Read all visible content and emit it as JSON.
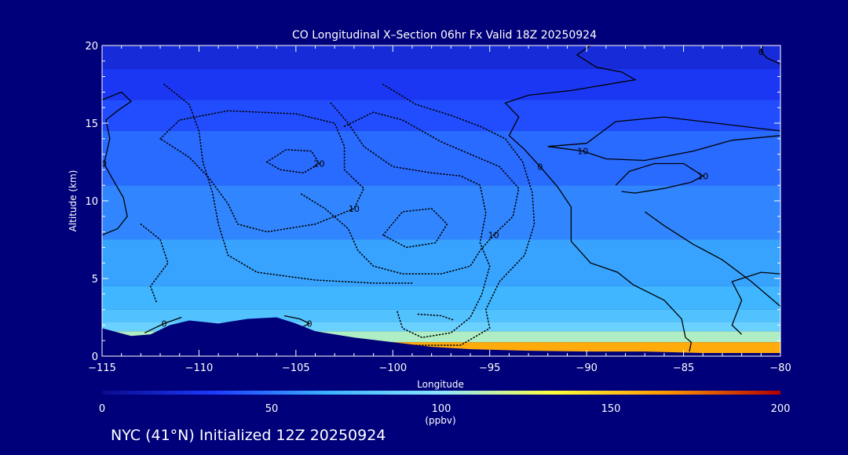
{
  "chart_data": {
    "type": "heatmap",
    "title": "CO Longitudinal X–Section 06hr  Fx Valid 18Z 20250924",
    "xlabel": "Longitude",
    "ylabel": "Altitude (km)",
    "xlim": [
      -115,
      -80
    ],
    "ylim": [
      0,
      20
    ],
    "x_ticks": [
      -115,
      -110,
      -105,
      -100,
      -95,
      -90,
      -85,
      -80
    ],
    "x_tick_labels": [
      "−115",
      "−110",
      "−105",
      "−100",
      "−95",
      "−90",
      "−85",
      "−80"
    ],
    "y_ticks": [
      0,
      5,
      10,
      15,
      20
    ],
    "y_tick_labels": [
      "0",
      "5",
      "10",
      "15",
      "20"
    ],
    "colorbar": {
      "min": 0,
      "max": 200,
      "ticks": [
        0,
        50,
        100,
        150,
        200
      ],
      "tick_labels": [
        "0",
        "50",
        "100",
        "150",
        "200"
      ],
      "unit_label": "(ppbv)",
      "colors": [
        "#0a0a8c",
        "#1e3cff",
        "#3cb4ff",
        "#8ce6ff",
        "#ffff3c",
        "#ff9600",
        "#b40000"
      ]
    },
    "layers": [
      {
        "z0": 18.5,
        "z1": 20,
        "value": 22
      },
      {
        "z0": 16.5,
        "z1": 18.5,
        "value": 30
      },
      {
        "z0": 14.5,
        "z1": 16.5,
        "value": 38
      },
      {
        "z0": 11,
        "z1": 14.5,
        "value": 46
      },
      {
        "z0": 7.5,
        "z1": 11,
        "value": 54
      },
      {
        "z0": 4.5,
        "z1": 7.5,
        "value": 62
      },
      {
        "z0": 3,
        "z1": 4.5,
        "value": 68
      },
      {
        "z0": 2.2,
        "z1": 3,
        "value": 76
      },
      {
        "z0": 1.6,
        "z1": 2.2,
        "value": 86
      },
      {
        "z0": 0.9,
        "z1": 1.6,
        "value": 110
      },
      {
        "z0": 0,
        "z1": 0.9,
        "value": 160
      }
    ],
    "terrain": [
      [
        -115,
        1.8
      ],
      [
        -113.5,
        1.3
      ],
      [
        -112.5,
        1.4
      ],
      [
        -111.5,
        2.0
      ],
      [
        -110.5,
        2.3
      ],
      [
        -109,
        2.1
      ],
      [
        -107.5,
        2.4
      ],
      [
        -106,
        2.5
      ],
      [
        -105,
        2.1
      ],
      [
        -104,
        1.6
      ],
      [
        -102,
        1.2
      ],
      [
        -100,
        0.9
      ],
      [
        -98,
        0.6
      ],
      [
        -96,
        0.45
      ],
      [
        -93,
        0.35
      ],
      [
        -90,
        0.3
      ],
      [
        -87,
        0.3
      ],
      [
        -84,
        0.2
      ],
      [
        -80,
        0.2
      ]
    ],
    "contours": [
      {
        "label": "0",
        "style": "solid",
        "points": [
          [
            -115,
            16.5
          ],
          [
            -114,
            17.0
          ],
          [
            -113.5,
            16.4
          ],
          [
            -114.2,
            15.8
          ],
          [
            -114.8,
            15.2
          ],
          [
            -114.6,
            14.0
          ],
          [
            -114.9,
            12.4
          ],
          [
            -114.5,
            11.5
          ],
          [
            -113.9,
            10.2
          ],
          [
            -113.7,
            9.0
          ],
          [
            -114.2,
            8.2
          ],
          [
            -115,
            7.8
          ]
        ]
      },
      {
        "label": "0",
        "style": "solid",
        "points": [
          [
            -112.8,
            1.5
          ],
          [
            -111.8,
            2.1
          ],
          [
            -110.9,
            2.5
          ]
        ]
      },
      {
        "label": "0",
        "style": "solid",
        "points": [
          [
            -105.6,
            2.6
          ],
          [
            -104.8,
            2.4
          ],
          [
            -104.3,
            2.1
          ],
          [
            -104.8,
            1.8
          ]
        ]
      },
      {
        "label": "0",
        "style": "solid",
        "points": [
          [
            -89.8,
            20
          ],
          [
            -90.5,
            19.4
          ],
          [
            -89.5,
            18.6
          ],
          [
            -88.2,
            18.3
          ],
          [
            -87.5,
            17.8
          ],
          [
            -90.8,
            17.1
          ],
          [
            -93.0,
            16.8
          ],
          [
            -94.2,
            16.3
          ],
          [
            -93.5,
            15.4
          ],
          [
            -94.0,
            14.2
          ],
          [
            -93.2,
            13.3
          ],
          [
            -92.4,
            12.2
          ],
          [
            -91.5,
            10.9
          ],
          [
            -90.8,
            9.6
          ],
          [
            -90.8,
            7.4
          ],
          [
            -89.8,
            6.0
          ],
          [
            -88.4,
            5.4
          ],
          [
            -87.6,
            4.6
          ],
          [
            -86.0,
            3.6
          ],
          [
            -85.1,
            2.4
          ],
          [
            -84.9,
            1.2
          ],
          [
            -84.6,
            0.9
          ],
          [
            -84.7,
            0.3
          ]
        ]
      },
      {
        "label": "0",
        "style": "solid",
        "points": [
          [
            -80,
            18.8
          ],
          [
            -80.7,
            19.2
          ],
          [
            -81.0,
            19.6
          ],
          [
            -80.9,
            20
          ]
        ]
      },
      {
        "label": "10",
        "style": "solid",
        "points": [
          [
            -80,
            14.5
          ],
          [
            -86.0,
            15.4
          ],
          [
            -88.5,
            15.1
          ],
          [
            -90.0,
            13.7
          ],
          [
            -92.0,
            13.5
          ],
          [
            -90.2,
            13.2
          ],
          [
            -89.0,
            12.7
          ],
          [
            -87.0,
            12.6
          ],
          [
            -84.5,
            13.2
          ],
          [
            -82.5,
            13.9
          ],
          [
            -80,
            14.2
          ]
        ]
      },
      {
        "label": "10",
        "style": "solid",
        "points": [
          [
            -88.5,
            11.0
          ],
          [
            -87.8,
            11.9
          ],
          [
            -86.5,
            12.4
          ],
          [
            -85.0,
            12.4
          ],
          [
            -84.0,
            11.6
          ],
          [
            -84.6,
            11.2
          ],
          [
            -86.0,
            10.8
          ],
          [
            -87.5,
            10.5
          ],
          [
            -88.2,
            10.6
          ]
        ]
      },
      {
        "label": "",
        "style": "solid",
        "points": [
          [
            -80,
            3.2
          ],
          [
            -81.5,
            4.8
          ],
          [
            -83.0,
            6.2
          ],
          [
            -84.5,
            7.2
          ],
          [
            -86.0,
            8.4
          ],
          [
            -87.0,
            9.3
          ]
        ]
      },
      {
        "label": "",
        "style": "solid",
        "points": [
          [
            -80,
            5.3
          ],
          [
            -81.0,
            5.4
          ],
          [
            -82.5,
            4.8
          ],
          [
            -82.0,
            3.6
          ],
          [
            -82.5,
            2.0
          ],
          [
            -82.0,
            1.4
          ]
        ]
      },
      {
        "label": "10",
        "style": "dotted",
        "points": [
          [
            -112.0,
            14.0
          ],
          [
            -111.0,
            15.2
          ],
          [
            -108.5,
            15.8
          ],
          [
            -105.0,
            15.6
          ],
          [
            -103.0,
            15.0
          ],
          [
            -102.5,
            13.5
          ],
          [
            -102.5,
            12.0
          ],
          [
            -101.5,
            10.8
          ],
          [
            -102.0,
            9.5
          ],
          [
            -104.0,
            8.5
          ],
          [
            -106.5,
            8.0
          ],
          [
            -108.0,
            8.5
          ],
          [
            -108.5,
            9.8
          ],
          [
            -109.5,
            11.5
          ],
          [
            -110.5,
            12.8
          ],
          [
            -112.0,
            14.0
          ]
        ]
      },
      {
        "label": "20",
        "style": "dotted",
        "points": [
          [
            -106.5,
            12.5
          ],
          [
            -105.5,
            13.3
          ],
          [
            -104.2,
            13.2
          ],
          [
            -103.8,
            12.4
          ],
          [
            -104.6,
            11.8
          ],
          [
            -105.8,
            12.0
          ],
          [
            -106.5,
            12.5
          ]
        ]
      },
      {
        "label": "10",
        "style": "dotted",
        "points": [
          [
            -102.5,
            14.8
          ],
          [
            -101.0,
            15.7
          ],
          [
            -99.5,
            15.2
          ],
          [
            -98.5,
            14.5
          ],
          [
            -97.5,
            13.8
          ],
          [
            -96.0,
            13.0
          ],
          [
            -94.5,
            12.2
          ],
          [
            -93.5,
            10.8
          ],
          [
            -93.8,
            9.0
          ],
          [
            -94.8,
            7.8
          ],
          [
            -95.5,
            6.8
          ],
          [
            -96.0,
            5.8
          ],
          [
            -97.5,
            5.3
          ],
          [
            -99.5,
            5.3
          ],
          [
            -101.0,
            5.8
          ],
          [
            -101.8,
            6.8
          ],
          [
            -102.3,
            8.2
          ],
          [
            -103.5,
            9.5
          ],
          [
            -104.8,
            10.5
          ]
        ]
      },
      {
        "label": "",
        "style": "dotted",
        "points": [
          [
            -100.5,
            7.8
          ],
          [
            -99.5,
            9.3
          ],
          [
            -98.0,
            9.5
          ],
          [
            -97.2,
            8.5
          ],
          [
            -97.8,
            7.3
          ],
          [
            -99.3,
            7.0
          ],
          [
            -100.5,
            7.8
          ]
        ]
      },
      {
        "label": "",
        "style": "dotted",
        "points": [
          [
            -111.8,
            17.5
          ],
          [
            -110.5,
            16.2
          ],
          [
            -110.0,
            14.5
          ],
          [
            -109.8,
            12.5
          ],
          [
            -109.3,
            10.5
          ],
          [
            -109.0,
            8.5
          ],
          [
            -108.5,
            6.5
          ],
          [
            -107.0,
            5.4
          ],
          [
            -104.0,
            4.9
          ],
          [
            -101.0,
            4.7
          ],
          [
            -99.0,
            4.7
          ]
        ]
      },
      {
        "label": "",
        "style": "dotted",
        "points": [
          [
            -103.2,
            16.3
          ],
          [
            -102.3,
            15.0
          ],
          [
            -101.5,
            13.5
          ],
          [
            -100.0,
            12.2
          ],
          [
            -98.0,
            11.8
          ],
          [
            -96.5,
            11.6
          ],
          [
            -95.5,
            11.0
          ],
          [
            -95.2,
            9.2
          ],
          [
            -95.5,
            7.3
          ],
          [
            -95.0,
            5.8
          ],
          [
            -95.4,
            4.0
          ],
          [
            -96.0,
            2.5
          ],
          [
            -97.0,
            1.5
          ],
          [
            -98.5,
            1.2
          ],
          [
            -99.5,
            1.8
          ],
          [
            -99.8,
            3.0
          ]
        ]
      },
      {
        "label": "",
        "style": "dotted",
        "points": [
          [
            -100.5,
            17.5
          ],
          [
            -98.8,
            16.2
          ],
          [
            -97.0,
            15.5
          ],
          [
            -95.5,
            14.8
          ],
          [
            -94.2,
            14.0
          ],
          [
            -93.3,
            12.5
          ],
          [
            -92.8,
            10.5
          ],
          [
            -92.7,
            8.5
          ],
          [
            -93.2,
            6.5
          ],
          [
            -94.5,
            4.8
          ],
          [
            -95.2,
            3.0
          ],
          [
            -95.0,
            1.8
          ],
          [
            -96.5,
            0.7
          ],
          [
            -99.0,
            0.7
          ]
        ]
      },
      {
        "label": "",
        "style": "dotted",
        "points": [
          [
            -113.0,
            8.5
          ],
          [
            -112.0,
            7.5
          ],
          [
            -111.6,
            6.0
          ],
          [
            -112.5,
            4.5
          ],
          [
            -112.2,
            3.5
          ]
        ]
      },
      {
        "label": "",
        "style": "dotted",
        "points": [
          [
            -98.7,
            2.7
          ],
          [
            -97.5,
            2.6
          ],
          [
            -96.8,
            2.3
          ]
        ]
      }
    ]
  },
  "footer": {
    "station_text": "NYC (41°N) Initialized 12Z 20250924"
  }
}
